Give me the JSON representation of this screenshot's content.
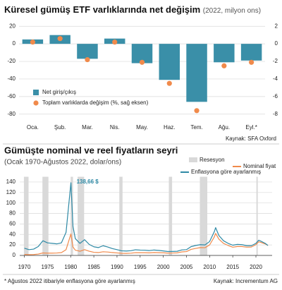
{
  "chart_data": [
    {
      "type": "combo",
      "title": "Küresel gümüş ETF varlıklarında net değişim",
      "subtitle": "(2022, milyon ons)",
      "categories": [
        "Oca.",
        "Şub.",
        "Mar.",
        "Nis.",
        "May.",
        "Haz.",
        "Tem.",
        "Ağu.",
        "Eyl.*"
      ],
      "series": [
        {
          "name": "Net giriş/çıkış",
          "color": "#3a8fa8",
          "values": [
            5,
            10,
            -17,
            6,
            -22,
            -41,
            -66,
            -21,
            -19
          ]
        },
        {
          "name": "Toplam varlıklarda değişim (%, sağ eksen)",
          "color": "#f08a4b",
          "axis": "y2",
          "values": [
            0.2,
            0.6,
            -1.8,
            0.2,
            -2.1,
            -4.5,
            -7.6,
            -2.5,
            -2.1
          ]
        }
      ],
      "ylim": [
        -85,
        25
      ],
      "yticks": [
        20,
        0,
        -20,
        -40,
        -60,
        -80
      ],
      "y2lim": [
        -8.5,
        2.5
      ],
      "y2ticks": [
        2,
        0,
        -2,
        -4,
        -6,
        -8
      ],
      "grid": true,
      "source": "Kaynak: SFA Oxford"
    },
    {
      "type": "line",
      "title": "Gümüşte nominal ve reel fiyatların seyri",
      "subtitle": "(Ocak 1970-Ağustos 2022, dolar/ons)",
      "x": [
        1970,
        1971,
        1972,
        1973,
        1974,
        1975,
        1976,
        1977,
        1978,
        1979,
        1980.05,
        1980.5,
        1981,
        1982,
        1983,
        1984,
        1985,
        1986,
        1987,
        1988,
        1989,
        1990,
        1991,
        1992,
        1993,
        1994,
        1995,
        1996,
        1997,
        1998,
        1999,
        2000,
        2001,
        2002,
        2003,
        2004,
        2005,
        2006,
        2007,
        2008,
        2009,
        2010,
        2011,
        2011.3,
        2012,
        2013,
        2014,
        2015,
        2016,
        2017,
        2018,
        2019,
        2020,
        2020.6,
        2021,
        2022,
        2022.6
      ],
      "series": [
        {
          "name": "Nominal fiyat",
          "color": "#f08a4b",
          "values": [
            1.8,
            1.5,
            1.7,
            2.6,
            4.7,
            4.4,
            4.4,
            4.6,
            5.4,
            11,
            41,
            16,
            10,
            8,
            11,
            8,
            6,
            5.5,
            7,
            6.5,
            5.5,
            4.8,
            4,
            3.9,
            4.3,
            5.3,
            5.2,
            5.2,
            4.9,
            5.5,
            5.2,
            5,
            4.4,
            4.6,
            4.9,
            6.7,
            7.3,
            11.5,
            13.4,
            15,
            14.7,
            20,
            35,
            42,
            31,
            23,
            19,
            15.7,
            17,
            17,
            15.7,
            16,
            20.5,
            26,
            25,
            22,
            19
          ]
        },
        {
          "name": "Enflasyona göre ayarlanmış",
          "color": "#2f8aa6",
          "values": [
            13.7,
            11,
            12,
            17,
            28,
            24,
            23,
            22,
            24,
            44,
            138.66,
            55,
            32,
            23,
            30,
            21,
            16.5,
            15,
            18.5,
            16,
            13,
            11,
            8.8,
            8.4,
            9,
            10.8,
            10.2,
            10,
            9.3,
            10.3,
            9.6,
            8.6,
            7.4,
            7.6,
            7.9,
            10.5,
            11,
            16.8,
            19,
            20.5,
            20,
            26.5,
            45,
            53,
            38,
            28,
            23,
            19.5,
            21,
            20.5,
            18.5,
            18.5,
            23,
            29,
            27.5,
            23,
            19
          ]
        }
      ],
      "recession_name": "Resesyon",
      "recessions": [
        [
          1969.9,
          1970.9
        ],
        [
          1973.9,
          1975.2
        ],
        [
          1980,
          1980.5
        ],
        [
          1981.5,
          1982.9
        ],
        [
          1990.5,
          1991.2
        ],
        [
          2001.2,
          2001.9
        ],
        [
          2007.9,
          2009.5
        ],
        [
          2020.1,
          2020.4
        ]
      ],
      "annotation": "138,66 $",
      "xlim": [
        1969,
        2023.5
      ],
      "xticks": [
        1970,
        1975,
        1980,
        1985,
        1990,
        1995,
        2000,
        2005,
        2010,
        2015,
        2020
      ],
      "ylim": [
        0,
        150
      ],
      "yticks": [
        0,
        20,
        40,
        60,
        80,
        100,
        120,
        140
      ],
      "grid": true,
      "footnote": "* Ağustos 2022 itibariyle enflasyona göre ayarlanmış",
      "source": "Kaynak: Incrementum AG"
    }
  ]
}
